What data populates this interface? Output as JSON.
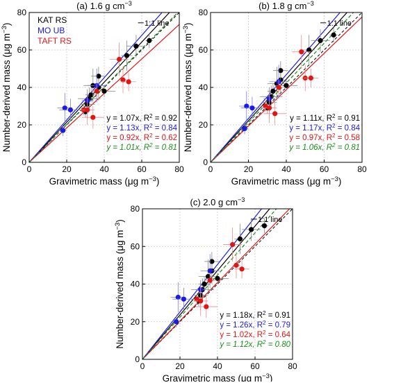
{
  "colors": {
    "kat": "#000000",
    "mo": "#1a1ae6",
    "taft": "#e01515",
    "all": "#1a8c1a",
    "grid": "#c8c8c8"
  },
  "chart_data": [
    {
      "type": "scatter",
      "panel_label": "(a) 1.6 g cm⁻³",
      "xlabel": "Gravimetric mass (μg m⁻³)",
      "ylabel": "Number-derived mass (μg m⁻³)",
      "xlim": [
        0,
        80
      ],
      "ylim": [
        0,
        80
      ],
      "xticks": [
        "0",
        "20",
        "40",
        "60",
        "80"
      ],
      "yticks": [
        "0",
        "20",
        "40",
        "60",
        "80"
      ],
      "grid": true,
      "one_to_one_label": "1:1 line",
      "legend": [
        "KAT RS",
        "MO UB",
        "TAFT RS"
      ],
      "series": [
        {
          "name": "KAT RS",
          "color": "#000000",
          "points": [
            [
              30,
              27
            ],
            [
              31,
              31
            ],
            [
              32,
              34
            ],
            [
              33,
              36
            ],
            [
              34,
              41
            ],
            [
              37,
              40
            ],
            [
              37,
              46
            ],
            [
              40,
              38
            ],
            [
              52,
              57
            ],
            [
              57,
              62
            ],
            [
              64,
              65
            ]
          ],
          "fit": "y = 1.07x, R² = 0.92",
          "slope": 1.07
        },
        {
          "name": "MO UB",
          "color": "#1a1ae6",
          "points": [
            [
              18,
              17
            ],
            [
              19,
              29
            ],
            [
              22,
              28
            ],
            [
              31,
              33
            ],
            [
              36,
              41
            ]
          ],
          "fit": "y = 1.13x, R² = 0.84",
          "slope": 1.13
        },
        {
          "name": "TAFT RS",
          "color": "#e01515",
          "points": [
            [
              29,
              28
            ],
            [
              31,
              28
            ],
            [
              34,
              24
            ],
            [
              36,
              38
            ],
            [
              48,
              55
            ],
            [
              50,
              44
            ],
            [
              53,
              43
            ]
          ],
          "fit": "y = 0.92x, R² = 0.62",
          "slope": 0.92
        },
        {
          "name": "",
          "color": "#1a8c1a",
          "points": [],
          "fit": "y = 1.01x, R² = 0.81",
          "slope": 1.01,
          "dashed_fit": true
        }
      ]
    },
    {
      "type": "scatter",
      "panel_label": "(b) 1.8 g cm⁻³",
      "xlabel": "Gravimetric mass (μg m⁻³)",
      "ylabel": "Number-derived mass (μg m⁻³)",
      "xlim": [
        0,
        80
      ],
      "ylim": [
        0,
        80
      ],
      "xticks": [
        "0",
        "20",
        "40",
        "60",
        "80"
      ],
      "yticks": [
        "0",
        "20",
        "40",
        "60",
        "80"
      ],
      "grid": true,
      "one_to_one_label": "1:1 line",
      "legend": [],
      "series": [
        {
          "name": "KAT RS",
          "color": "#000000",
          "points": [
            [
              30,
              29
            ],
            [
              31,
              32
            ],
            [
              32,
              35
            ],
            [
              33,
              38
            ],
            [
              35,
              42
            ],
            [
              37,
              44
            ],
            [
              37,
              49
            ],
            [
              40,
              41
            ],
            [
              52,
              60
            ],
            [
              58,
              65
            ],
            [
              65,
              68
            ]
          ],
          "fit": "y = 1.11x, R² = 0.91",
          "slope": 1.11
        },
        {
          "name": "MO UB",
          "color": "#1a1ae6",
          "points": [
            [
              18,
              18
            ],
            [
              19,
              30
            ],
            [
              22,
              29
            ],
            [
              31,
              34
            ],
            [
              36,
              43
            ]
          ],
          "fit": "y = 1.17x, R² = 0.84",
          "slope": 1.17
        },
        {
          "name": "TAFT RS",
          "color": "#e01515",
          "points": [
            [
              29,
              30
            ],
            [
              31,
              29
            ],
            [
              34,
              26
            ],
            [
              36,
              40
            ],
            [
              48,
              59
            ],
            [
              50,
              45
            ],
            [
              53,
              45
            ]
          ],
          "fit": "y = 0.97x, R² = 0.58",
          "slope": 0.97
        },
        {
          "name": "",
          "color": "#1a8c1a",
          "points": [],
          "fit": "y = 1.06x, R² = 0.81",
          "slope": 1.06,
          "dashed_fit": true
        }
      ]
    },
    {
      "type": "scatter",
      "panel_label": "(c) 2.0 g cm⁻³",
      "xlabel": "Gravimetric mass (μg m⁻³)",
      "ylabel": "Number-derived mass (μg m⁻³)",
      "xlim": [
        0,
        80
      ],
      "ylim": [
        0,
        80
      ],
      "xticks": [
        "0",
        "20",
        "40",
        "60",
        "80"
      ],
      "yticks": [
        "0",
        "20",
        "40",
        "60",
        "80"
      ],
      "grid": true,
      "one_to_one_label": "1:1 line",
      "legend": [],
      "series": [
        {
          "name": "KAT RS",
          "color": "#000000",
          "points": [
            [
              30,
              31
            ],
            [
              31,
              34
            ],
            [
              32,
              37
            ],
            [
              33,
              40
            ],
            [
              35,
              44
            ],
            [
              37,
              47
            ],
            [
              37,
              52
            ],
            [
              40,
              43
            ],
            [
              52,
              64
            ],
            [
              58,
              69
            ],
            [
              65,
              71
            ]
          ],
          "fit": "y = 1.18x, R² = 0.91",
          "slope": 1.18
        },
        {
          "name": "MO UB",
          "color": "#1a1ae6",
          "points": [
            [
              18,
              20
            ],
            [
              19,
              33
            ],
            [
              22,
              32
            ],
            [
              31,
              37
            ],
            [
              36,
              47
            ]
          ],
          "fit": "y = 1.26x, R² = 0.79",
          "slope": 1.26
        },
        {
          "name": "TAFT RS",
          "color": "#e01515",
          "points": [
            [
              29,
              32
            ],
            [
              31,
              31
            ],
            [
              34,
              28
            ],
            [
              36,
              42
            ],
            [
              48,
              61
            ],
            [
              50,
              50
            ],
            [
              53,
              48
            ]
          ],
          "fit": "y = 1.02x, R² = 0.64",
          "slope": 1.02
        },
        {
          "name": "",
          "color": "#1a8c1a",
          "points": [],
          "fit": "y = 1.12x, R² = 0.80",
          "slope": 1.12,
          "dashed_fit": true
        }
      ]
    }
  ]
}
